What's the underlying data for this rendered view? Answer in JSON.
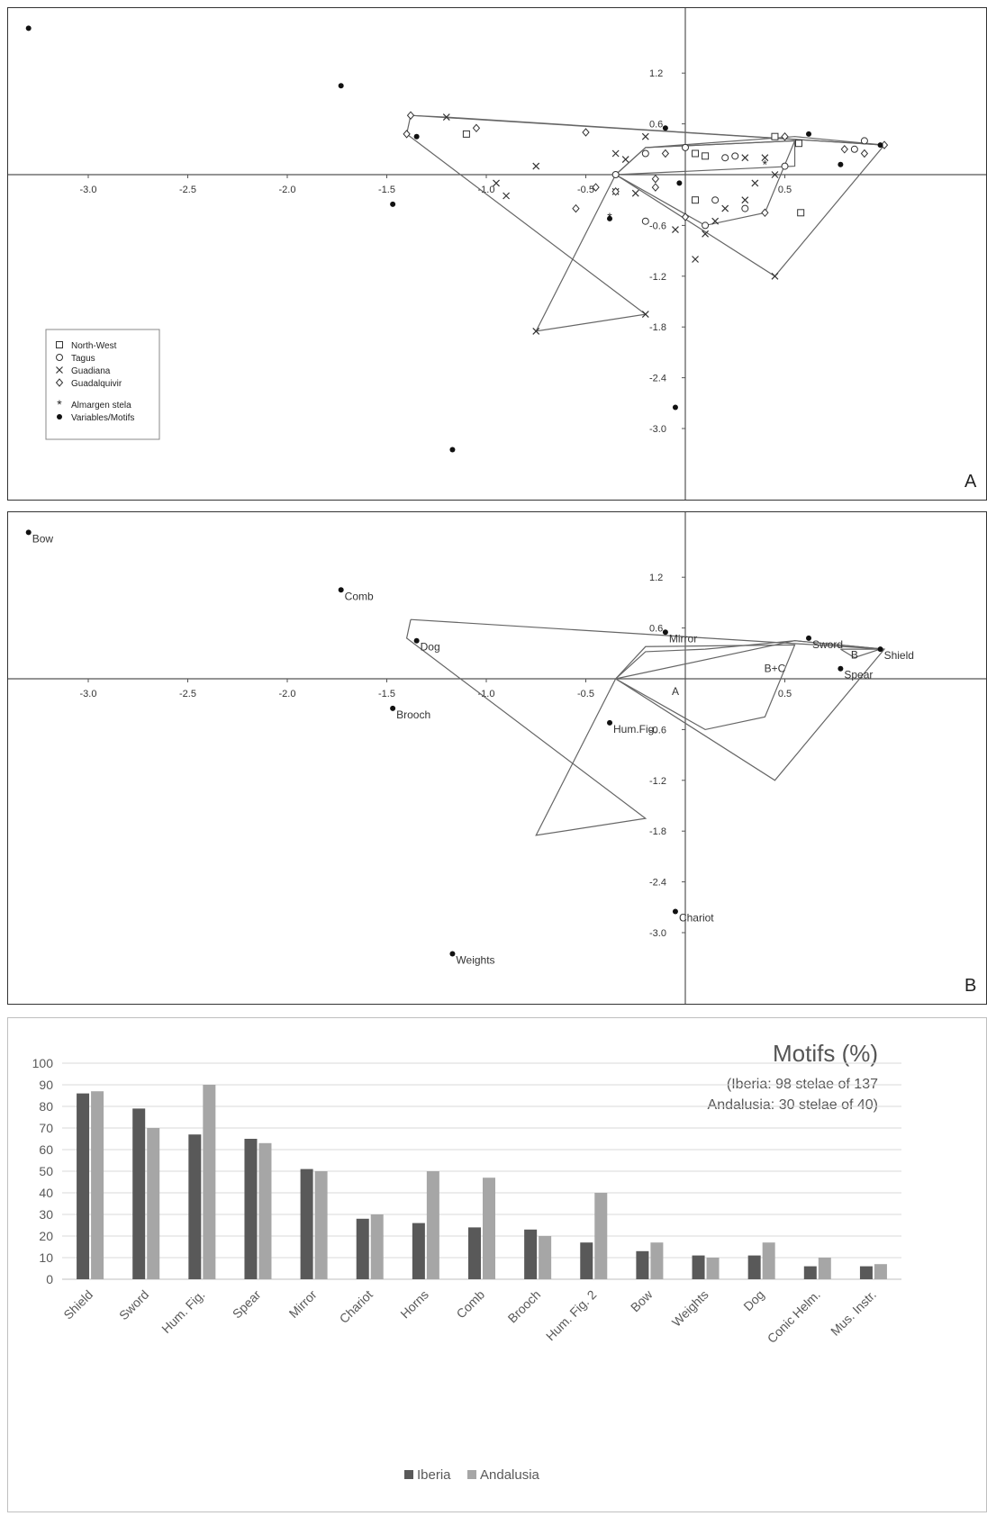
{
  "chart_data": [
    {
      "type": "scatter",
      "panel_label": "A",
      "x_ticks": [
        -3.0,
        -2.5,
        -2.0,
        -1.5,
        -1.0,
        -0.5,
        0.5
      ],
      "y_ticks": [
        1.2,
        0.6,
        -0.6,
        -1.2,
        -1.8,
        -2.4,
        -3.0
      ],
      "x_tick_labels": [
        "-3.0",
        "-2.5",
        "-2.0",
        "-1.5",
        "-1.0",
        "-0.5",
        "0.5"
      ],
      "y_tick_labels": [
        "1.2",
        "0.6",
        "-0.6",
        "-1.2",
        "-1.8",
        "-2.4",
        "-3.0"
      ],
      "xlim": [
        -3.4,
        1.2
      ],
      "ylim": [
        -3.5,
        2.0
      ],
      "legend": {
        "position": "bottom-left",
        "entries": [
          {
            "label": "North-West",
            "marker": "square"
          },
          {
            "label": "Tagus",
            "marker": "circle"
          },
          {
            "label": "Guadiana",
            "marker": "x"
          },
          {
            "label": "Guadalquivir",
            "marker": "diamond"
          },
          {
            "label": "Almargen stela",
            "marker": "asterisk"
          },
          {
            "label": "Variables/Motifs",
            "marker": "dot"
          }
        ]
      },
      "series": [
        {
          "name": "North-West",
          "marker": "square",
          "points": [
            [
              -1.1,
              0.48
            ],
            [
              0.05,
              0.25
            ],
            [
              0.1,
              0.22
            ],
            [
              0.05,
              -0.3
            ],
            [
              0.45,
              0.45
            ],
            [
              0.57,
              0.37
            ],
            [
              0.58,
              -0.45
            ]
          ]
        },
        {
          "name": "Tagus",
          "marker": "circle",
          "points": [
            [
              -0.35,
              0.0
            ],
            [
              -0.2,
              0.25
            ],
            [
              0.0,
              0.32
            ],
            [
              0.25,
              0.22
            ],
            [
              0.9,
              0.4
            ],
            [
              0.85,
              0.3
            ],
            [
              0.1,
              -0.6
            ],
            [
              -0.2,
              -0.55
            ],
            [
              0.3,
              -0.4
            ],
            [
              0.5,
              0.1
            ],
            [
              0.2,
              0.2
            ],
            [
              0.15,
              -0.3
            ]
          ]
        },
        {
          "name": "Guadiana",
          "marker": "x",
          "points": [
            [
              -1.2,
              0.68
            ],
            [
              -0.75,
              0.1
            ],
            [
              -0.35,
              0.25
            ],
            [
              -0.3,
              0.18
            ],
            [
              -0.35,
              -0.2
            ],
            [
              -0.25,
              -0.22
            ],
            [
              -0.05,
              -0.65
            ],
            [
              -0.2,
              0.45
            ],
            [
              0.2,
              -0.4
            ],
            [
              0.3,
              0.2
            ],
            [
              0.35,
              -0.1
            ],
            [
              0.4,
              0.2
            ],
            [
              0.15,
              -0.55
            ],
            [
              0.05,
              -1.0
            ],
            [
              0.1,
              -0.7
            ],
            [
              0.45,
              0.0
            ],
            [
              0.45,
              -1.2
            ],
            [
              -0.2,
              -1.65
            ],
            [
              -0.75,
              -1.85
            ],
            [
              -0.95,
              -0.1
            ],
            [
              -0.9,
              -0.25
            ],
            [
              0.3,
              -0.3
            ]
          ]
        },
        {
          "name": "Guadalquivir",
          "marker": "diamond",
          "points": [
            [
              -1.4,
              0.48
            ],
            [
              -1.38,
              0.7
            ],
            [
              -0.5,
              0.5
            ],
            [
              -1.05,
              0.55
            ],
            [
              -0.35,
              -0.2
            ],
            [
              -0.45,
              -0.15
            ],
            [
              -0.55,
              -0.4
            ],
            [
              -0.15,
              -0.05
            ],
            [
              -0.15,
              -0.15
            ],
            [
              -0.1,
              0.25
            ],
            [
              0.0,
              -0.5
            ],
            [
              0.5,
              0.45
            ],
            [
              0.8,
              0.3
            ],
            [
              0.9,
              0.25
            ],
            [
              1.0,
              0.35
            ],
            [
              0.4,
              -0.45
            ]
          ]
        },
        {
          "name": "Almargen stela",
          "marker": "asterisk",
          "points": [
            [
              -0.38,
              -0.5
            ],
            [
              0.4,
              0.12
            ]
          ]
        },
        {
          "name": "Variables/Motifs",
          "marker": "dot",
          "points": [
            [
              -3.3,
              1.73
            ],
            [
              -1.73,
              1.05
            ],
            [
              -1.35,
              0.45
            ],
            [
              -1.47,
              -0.35
            ],
            [
              -0.38,
              -0.52
            ],
            [
              -0.1,
              0.55
            ],
            [
              -0.03,
              -0.1
            ],
            [
              0.62,
              0.48
            ],
            [
              0.98,
              0.35
            ],
            [
              0.78,
              0.12
            ],
            [
              -0.05,
              -2.75
            ],
            [
              -1.17,
              -3.25
            ]
          ]
        }
      ],
      "hulls": [
        {
          "name": "Guadalquivir",
          "points": [
            [
              -1.38,
              0.7
            ],
            [
              1.0,
              0.35
            ],
            [
              0.55,
              0.45
            ],
            [
              -0.2,
              0.32
            ],
            [
              -0.2,
              0.32
            ]
          ]
        },
        {
          "name": "Guadiana",
          "points": [
            [
              -1.4,
              0.48
            ],
            [
              -1.38,
              0.7
            ],
            [
              -1.2,
              0.68
            ],
            [
              1.0,
              0.35
            ],
            [
              0.45,
              -1.2
            ],
            [
              -0.35,
              0.0
            ],
            [
              -0.75,
              -1.85
            ],
            [
              -0.2,
              -1.65
            ],
            [
              -1.4,
              0.48
            ]
          ]
        },
        {
          "name": "Tagus",
          "points": [
            [
              -0.35,
              0.0
            ],
            [
              -0.2,
              0.32
            ],
            [
              0.55,
              0.4
            ],
            [
              0.4,
              -0.45
            ],
            [
              0.1,
              -0.6
            ],
            [
              -0.35,
              0.0
            ]
          ]
        },
        {
          "name": "North-West",
          "points": [
            [
              -0.35,
              0.0
            ],
            [
              -0.2,
              0.32
            ],
            [
              0.55,
              0.4
            ],
            [
              0.55,
              0.1
            ],
            [
              -0.35,
              0.0
            ]
          ]
        }
      ]
    },
    {
      "type": "scatter",
      "panel_label": "B",
      "x_ticks": [
        -3.0,
        -2.5,
        -2.0,
        -1.5,
        -1.0,
        -0.5,
        0.5
      ],
      "y_ticks": [
        1.2,
        0.6,
        -0.6,
        -1.2,
        -1.8,
        -2.4,
        -3.0
      ],
      "x_tick_labels": [
        "-3.0",
        "-2.5",
        "-2.0",
        "-1.5",
        "-1.0",
        "-0.5",
        "0.5"
      ],
      "y_tick_labels": [
        "1.2",
        "0.6",
        "-0.6",
        "-1.2",
        "-1.8",
        "-2.4",
        "-3.0"
      ],
      "xlim": [
        -3.4,
        1.2
      ],
      "ylim": [
        -3.5,
        2.0
      ],
      "points": [
        {
          "label": "Bow",
          "x": -3.3,
          "y": 1.73
        },
        {
          "label": "Comb",
          "x": -1.73,
          "y": 1.05
        },
        {
          "label": "Dog",
          "x": -1.35,
          "y": 0.45
        },
        {
          "label": "Mirror",
          "x": -0.1,
          "y": 0.55
        },
        {
          "label": "Sword",
          "x": 0.62,
          "y": 0.48
        },
        {
          "label": "Shield",
          "x": 0.98,
          "y": 0.35
        },
        {
          "label": "Spear",
          "x": 0.78,
          "y": 0.12
        },
        {
          "label": "Brooch",
          "x": -1.47,
          "y": -0.35
        },
        {
          "label": "Hum.Fig.",
          "x": -0.38,
          "y": -0.52
        },
        {
          "label": "Chariot",
          "x": -0.05,
          "y": -2.75
        },
        {
          "label": "Weights",
          "x": -1.17,
          "y": -3.25
        }
      ],
      "group_labels": [
        {
          "label": "A",
          "x": -0.05,
          "y": -0.15
        },
        {
          "label": "B+C",
          "x": 0.45,
          "y": 0.12
        },
        {
          "label": "B",
          "x": 0.85,
          "y": 0.28
        }
      ],
      "hulls": [
        {
          "name": "A",
          "points": [
            [
              -1.38,
              0.7
            ],
            [
              1.0,
              0.35
            ],
            [
              0.55,
              0.45
            ],
            [
              0.1,
              0.35
            ],
            [
              -0.2,
              0.32
            ],
            [
              -0.35,
              0.0
            ],
            [
              -0.75,
              -1.85
            ],
            [
              -0.2,
              -1.65
            ],
            [
              -1.4,
              0.48
            ],
            [
              -1.38,
              0.7
            ]
          ]
        },
        {
          "name": "B+C",
          "points": [
            [
              -0.35,
              0.0
            ],
            [
              -0.2,
              0.38
            ],
            [
              0.55,
              0.4
            ],
            [
              0.4,
              -0.45
            ],
            [
              0.1,
              -0.6
            ],
            [
              -0.35,
              0.0
            ]
          ]
        },
        {
          "name": "C",
          "points": [
            [
              -0.35,
              0.0
            ],
            [
              0.45,
              -1.2
            ],
            [
              1.0,
              0.35
            ],
            [
              0.55,
              0.45
            ],
            [
              -0.35,
              0.0
            ]
          ]
        },
        {
          "name": "B",
          "points": [
            [
              0.78,
              0.35
            ],
            [
              0.98,
              0.35
            ],
            [
              0.85,
              0.25
            ],
            [
              0.78,
              0.35
            ]
          ]
        }
      ]
    },
    {
      "type": "bar",
      "title": "Motifs (%)",
      "subtitle_lines": [
        "(Iberia: 98 stelae of 137",
        "Andalusia: 30 stelae of 40)"
      ],
      "categories": [
        "Shield",
        "Sword",
        "Hum. Fig.",
        "Spear",
        "Mirror",
        "Chariot",
        "Horns",
        "Comb",
        "Brooch",
        "Hum. Fig. 2",
        "Bow",
        "Weights",
        "Dog",
        "Conic Helm.",
        "Mus. Instr."
      ],
      "series": [
        {
          "name": "Iberia",
          "color": "#595959",
          "values": [
            86,
            79,
            67,
            65,
            51,
            28,
            26,
            24,
            23,
            17,
            13,
            11,
            11,
            6,
            6
          ]
        },
        {
          "name": "Andalusia",
          "color": "#a6a6a6",
          "values": [
            87,
            70,
            90,
            63,
            50,
            30,
            50,
            47,
            20,
            40,
            17,
            10,
            17,
            10,
            7
          ]
        }
      ],
      "ylim": [
        0,
        100
      ],
      "y_ticks": [
        0,
        10,
        20,
        30,
        40,
        50,
        60,
        70,
        80,
        90,
        100
      ],
      "grid": true,
      "legend_position": "bottom"
    }
  ]
}
